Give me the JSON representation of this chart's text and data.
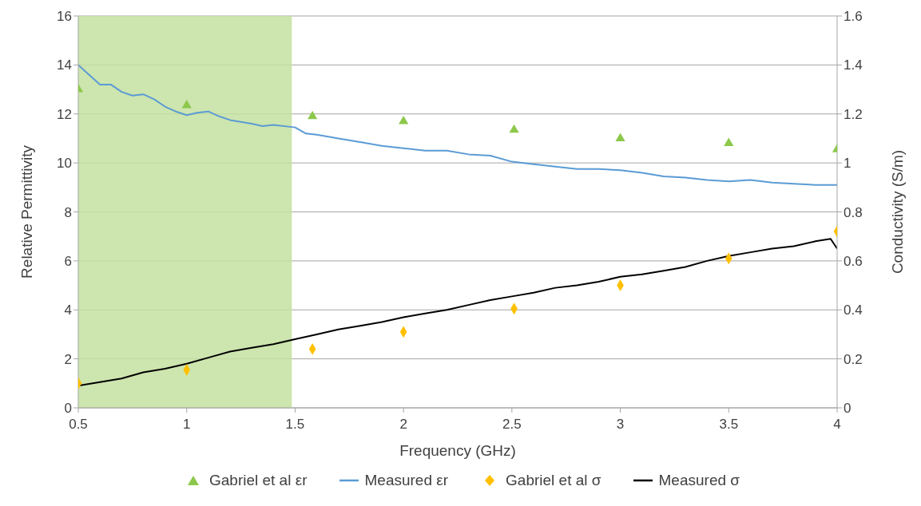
{
  "chart_data": {
    "type": "line",
    "xlabel": "Frequency (GHz)",
    "ylabel": "Relative Permittivity",
    "y2label": "Conductivity (S/m)",
    "xlim": [
      0.5,
      4
    ],
    "xticks": [
      0.5,
      1,
      1.5,
      2,
      2.5,
      3,
      3.5,
      4
    ],
    "ylim": [
      0,
      16
    ],
    "yticks": [
      0,
      2,
      4,
      6,
      8,
      10,
      12,
      14,
      16
    ],
    "y2lim": [
      0,
      1.6
    ],
    "y2ticks": [
      0,
      0.2,
      0.4,
      0.6,
      0.8,
      1,
      1.2,
      1.4,
      1.6
    ],
    "grid": "y",
    "legend": "bottom",
    "bands": [
      {
        "axis": "x",
        "from": 0.5,
        "to": 1.485,
        "color": "#c4e0a0"
      }
    ],
    "series": [
      {
        "name": "Gabriel et al εr",
        "type": "scatter",
        "marker": "triangle",
        "color": "#8cc84b",
        "x": [
          0.5,
          1,
          1.58,
          2,
          2.51,
          3,
          3.5,
          4
        ],
        "values": [
          13.0,
          12.35,
          11.9,
          11.7,
          11.35,
          11.0,
          10.8,
          10.55
        ]
      },
      {
        "name": "Measured εr",
        "type": "line",
        "marker": "none",
        "color": "#5b9bd5",
        "x": [
          0.5,
          0.55,
          0.6,
          0.65,
          0.7,
          0.75,
          0.8,
          0.85,
          0.9,
          0.95,
          1.0,
          1.05,
          1.1,
          1.15,
          1.2,
          1.3,
          1.35,
          1.4,
          1.5,
          1.55,
          1.6,
          1.7,
          1.8,
          1.9,
          2.0,
          2.1,
          2.2,
          2.3,
          2.4,
          2.5,
          2.6,
          2.7,
          2.8,
          2.9,
          3.0,
          3.1,
          3.2,
          3.3,
          3.4,
          3.5,
          3.6,
          3.7,
          3.8,
          3.9,
          4.0
        ],
        "values": [
          14.0,
          13.6,
          13.2,
          13.2,
          12.9,
          12.75,
          12.8,
          12.6,
          12.3,
          12.1,
          11.95,
          12.05,
          12.1,
          11.9,
          11.75,
          11.6,
          11.5,
          11.55,
          11.45,
          11.2,
          11.15,
          11.0,
          10.85,
          10.7,
          10.6,
          10.5,
          10.5,
          10.35,
          10.3,
          10.05,
          9.95,
          9.85,
          9.75,
          9.75,
          9.7,
          9.6,
          9.45,
          9.4,
          9.3,
          9.25,
          9.3,
          9.2,
          9.15,
          9.1,
          9.1
        ]
      },
      {
        "name": "Gabriel et al σ",
        "type": "scatter",
        "marker": "diamond",
        "color": "#ffc000",
        "axis": "y2",
        "x": [
          0.5,
          1,
          1.58,
          2,
          2.51,
          3,
          3.5,
          4
        ],
        "values": [
          0.1,
          0.155,
          0.24,
          0.31,
          0.405,
          0.5,
          0.61,
          0.72
        ]
      },
      {
        "name": "Measured σ",
        "type": "line",
        "marker": "none",
        "color": "#000000",
        "axis": "y2",
        "x": [
          0.5,
          0.6,
          0.7,
          0.8,
          0.9,
          1.0,
          1.1,
          1.2,
          1.3,
          1.4,
          1.5,
          1.6,
          1.7,
          1.8,
          1.9,
          2.0,
          2.1,
          2.2,
          2.3,
          2.4,
          2.5,
          2.6,
          2.7,
          2.8,
          2.9,
          3.0,
          3.1,
          3.2,
          3.3,
          3.4,
          3.5,
          3.6,
          3.7,
          3.8,
          3.9,
          3.97,
          4.0
        ],
        "values": [
          0.09,
          0.105,
          0.12,
          0.145,
          0.16,
          0.18,
          0.205,
          0.23,
          0.245,
          0.26,
          0.28,
          0.3,
          0.32,
          0.335,
          0.35,
          0.37,
          0.385,
          0.4,
          0.42,
          0.44,
          0.455,
          0.47,
          0.49,
          0.5,
          0.515,
          0.535,
          0.545,
          0.56,
          0.575,
          0.6,
          0.62,
          0.635,
          0.65,
          0.66,
          0.68,
          0.69,
          0.65
        ]
      }
    ]
  }
}
